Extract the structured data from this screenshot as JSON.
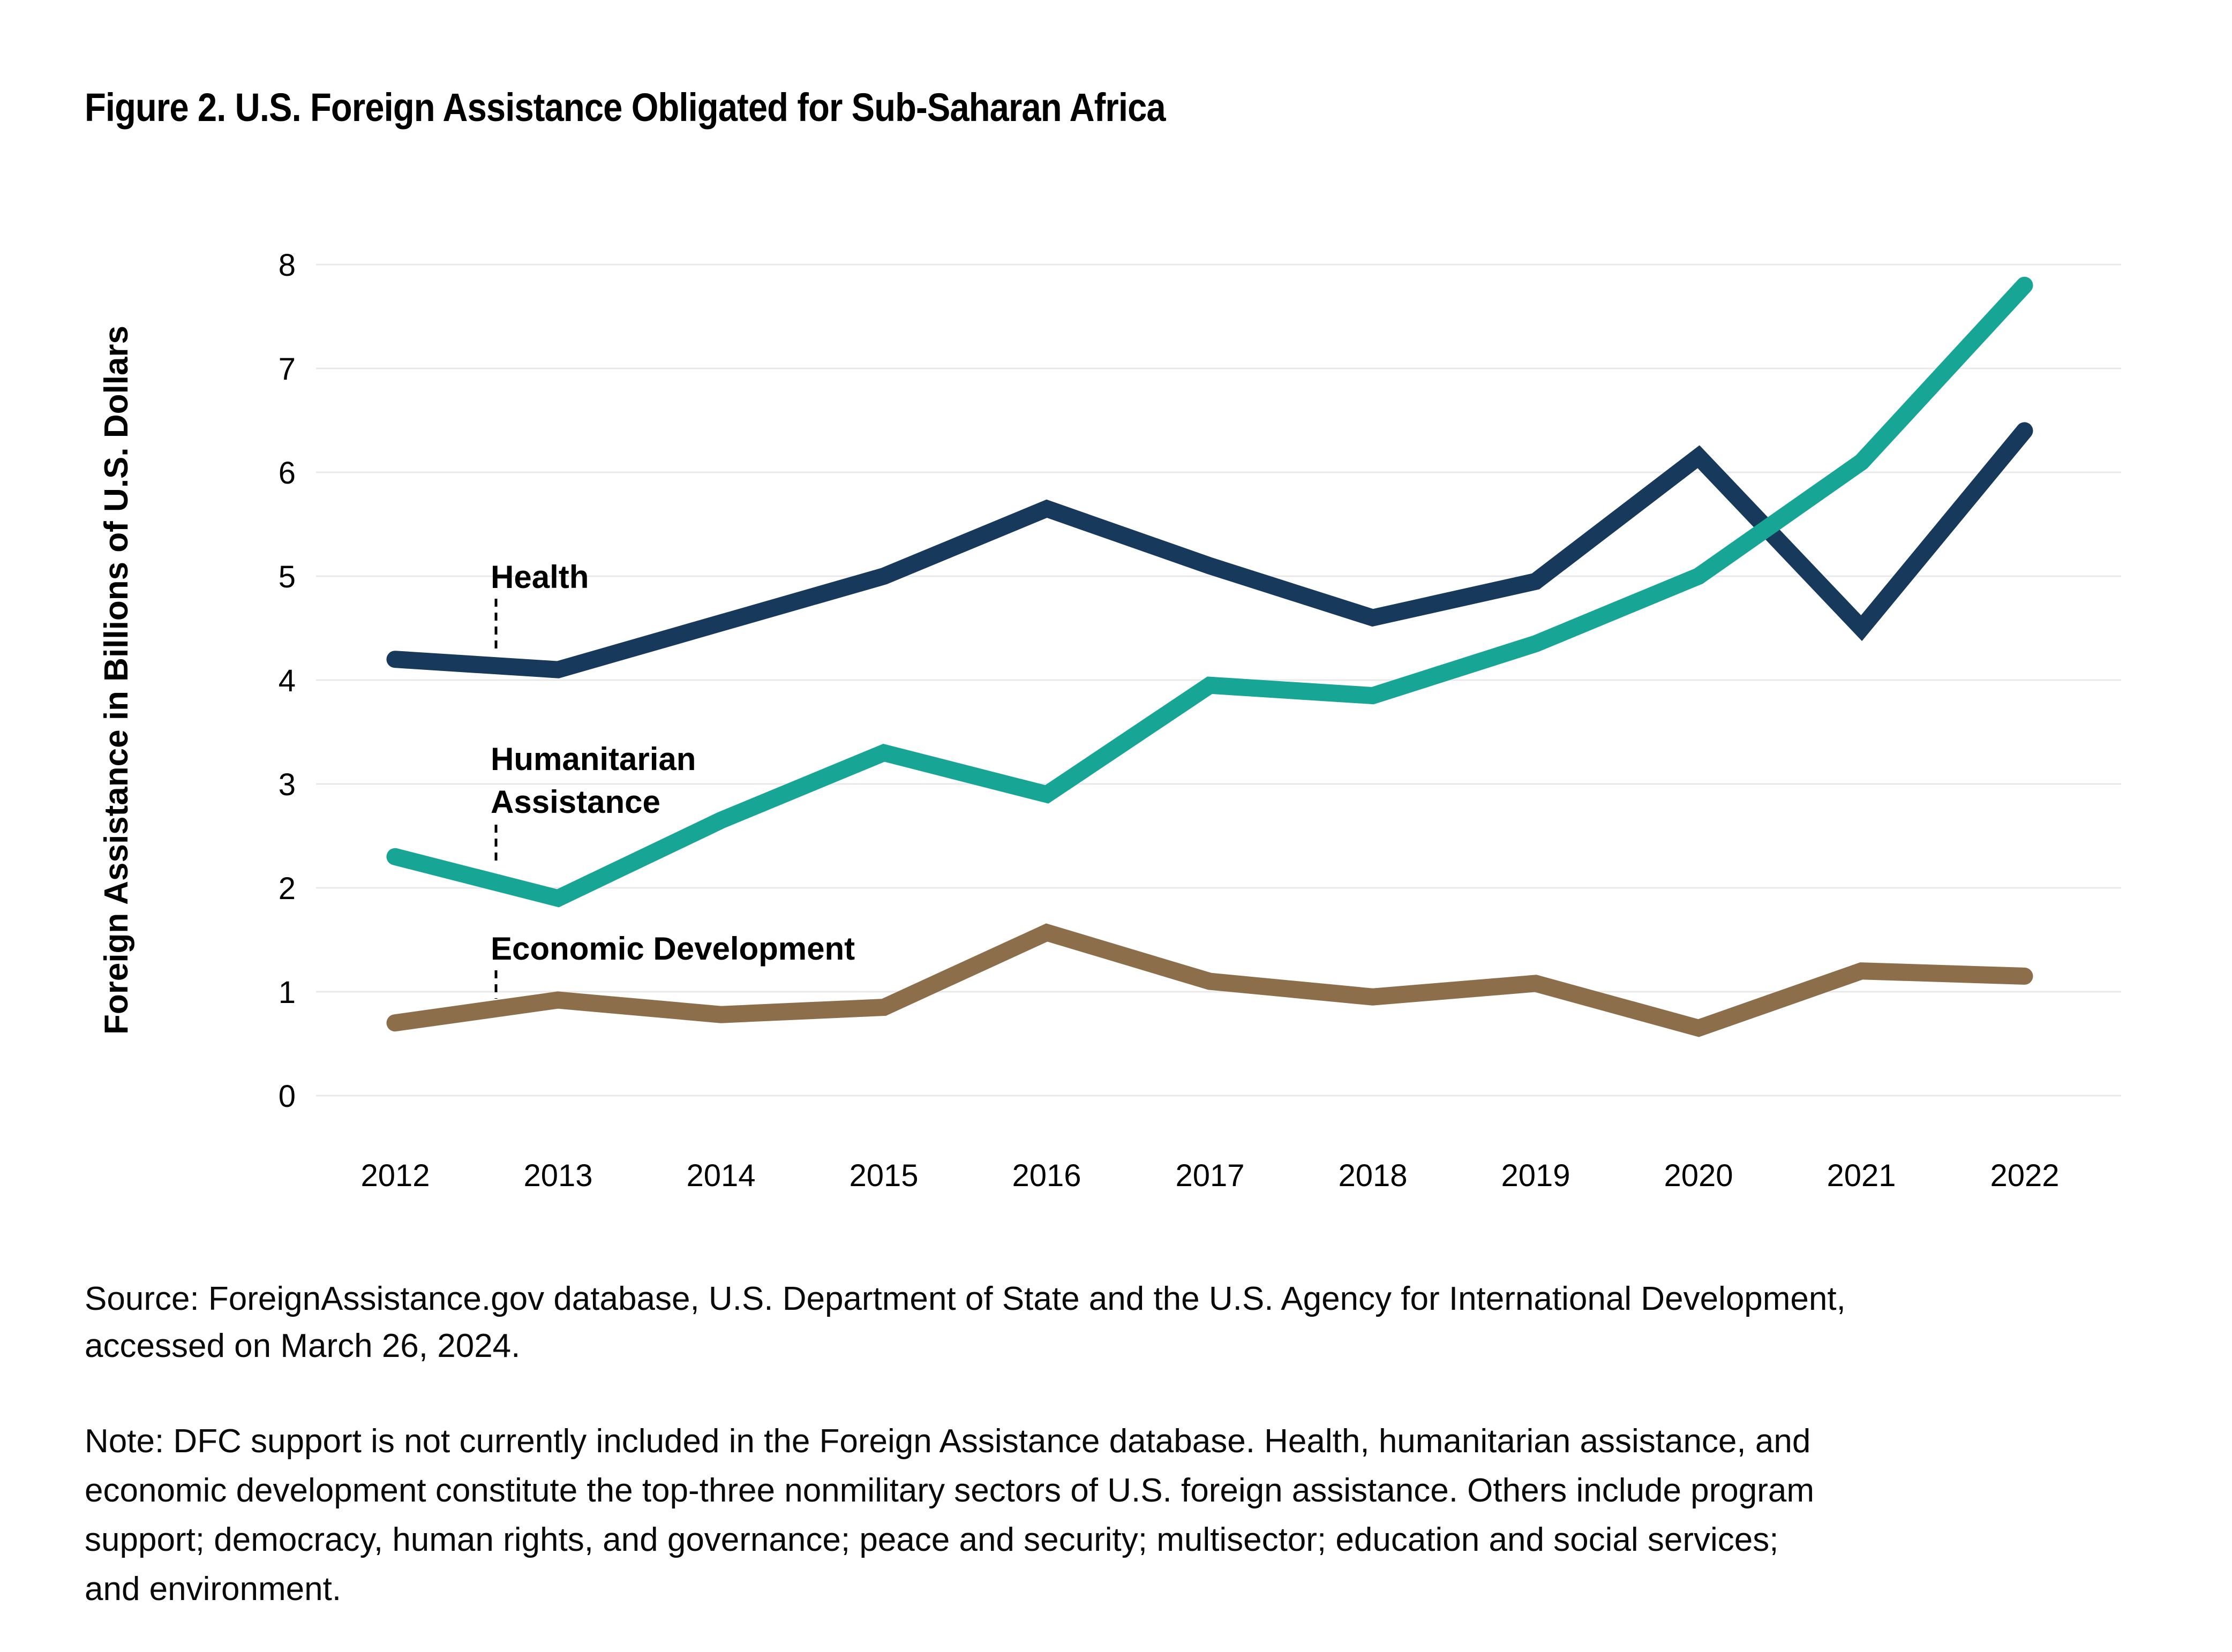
{
  "figure": {
    "title": "Figure 2. U.S. Foreign Assistance Obligated for Sub-Saharan Africa"
  },
  "source": {
    "lines": [
      "Source: ForeignAssistance.gov database, U.S. Department of State and the U.S. Agency for International Development,",
      "accessed on March 26, 2024."
    ]
  },
  "note": {
    "lines": [
      "Note: DFC support is not currently included in the Foreign Assistance database. Health, humanitarian assistance, and",
      "economic development constitute the top-three nonmilitary sectors of U.S. foreign assistance. Others include program",
      "support; democracy, human rights, and governance; peace and security; multisector; education and social services;",
      "and environment."
    ]
  },
  "chart_data": {
    "type": "line",
    "title": "Figure 2. U.S. Foreign Assistance Obligated for Sub-Saharan Africa",
    "xlabel": "",
    "ylabel": "Foreign Assistance in Billions of U.S. Dollars",
    "categories": [
      2012,
      2013,
      2014,
      2015,
      2016,
      2017,
      2018,
      2019,
      2020,
      2021,
      2022
    ],
    "ylim": [
      0,
      8
    ],
    "yticks": [
      8,
      7,
      6,
      5,
      4,
      3,
      2,
      1,
      0
    ],
    "grid": "horizontal",
    "legend_position": "inline-labels",
    "colors": {
      "health": "#17395C",
      "humanitarian_assistance": "#17A596",
      "economic_development": "#8D6E4B",
      "gridline": "#E9E9E9",
      "text": "#000000"
    },
    "series": [
      {
        "name": "Health",
        "label_lines": [
          "Health"
        ],
        "color": "#17395C",
        "values": [
          4.2,
          4.1,
          4.55,
          5.0,
          5.65,
          5.1,
          4.6,
          4.95,
          6.15,
          4.5,
          6.4
        ]
      },
      {
        "name": "Humanitarian Assistance",
        "label_lines": [
          "Humanitarian",
          "Assistance"
        ],
        "color": "#17A596",
        "values": [
          2.3,
          1.9,
          2.65,
          3.3,
          2.9,
          3.95,
          3.85,
          4.35,
          5.0,
          6.1,
          7.8
        ]
      },
      {
        "name": "Economic Development",
        "label_lines": [
          "Economic Development"
        ],
        "color": "#8D6E4B",
        "values": [
          0.7,
          0.92,
          0.78,
          0.85,
          1.57,
          1.1,
          0.95,
          1.08,
          0.65,
          1.2,
          1.15
        ]
      }
    ]
  }
}
